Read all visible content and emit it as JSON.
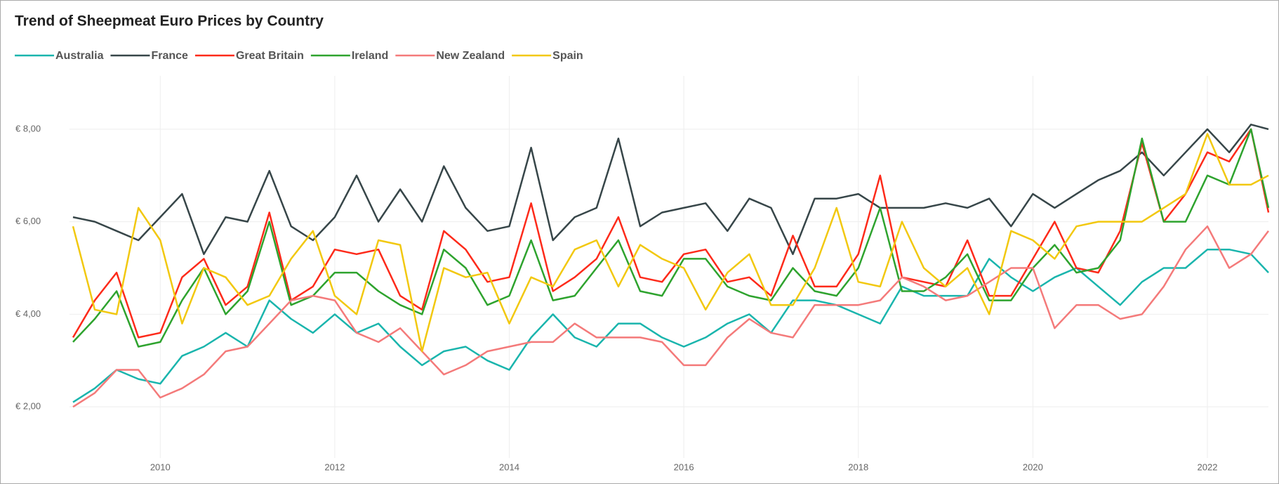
{
  "chart_data": {
    "type": "line",
    "title": "Trend of Sheepmeat Euro Prices by Country",
    "x": [
      2009,
      2009.25,
      2009.5,
      2009.75,
      2010,
      2010.25,
      2010.5,
      2010.75,
      2011,
      2011.25,
      2011.5,
      2011.75,
      2012,
      2012.25,
      2012.5,
      2012.75,
      2013,
      2013.25,
      2013.5,
      2013.75,
      2014,
      2014.25,
      2014.5,
      2014.75,
      2015,
      2015.25,
      2015.5,
      2015.75,
      2016,
      2016.25,
      2016.5,
      2016.75,
      2017,
      2017.25,
      2017.5,
      2017.75,
      2018,
      2018.25,
      2018.5,
      2018.75,
      2019,
      2019.25,
      2019.5,
      2019.75,
      2020,
      2020.25,
      2020.5,
      2020.75,
      2021,
      2021.25,
      2021.5,
      2021.75,
      2022,
      2022.25,
      2022.5,
      2022.7
    ],
    "series": [
      {
        "name": "Australia",
        "color": "#1ab5ad",
        "values": [
          2.1,
          2.4,
          2.8,
          2.6,
          2.5,
          3.1,
          3.3,
          3.6,
          3.3,
          4.3,
          3.9,
          3.6,
          4.0,
          3.6,
          3.8,
          3.3,
          2.9,
          3.2,
          3.3,
          3.0,
          2.8,
          3.5,
          4.0,
          3.5,
          3.3,
          3.8,
          3.8,
          3.5,
          3.3,
          3.5,
          3.8,
          4.0,
          3.6,
          4.3,
          4.3,
          4.2,
          4.0,
          3.8,
          4.6,
          4.4,
          4.4,
          4.4,
          5.2,
          4.8,
          4.5,
          4.8,
          5.0,
          4.6,
          4.2,
          4.7,
          5.0,
          5.0,
          5.4,
          5.4,
          5.3,
          4.9
        ]
      },
      {
        "name": "France",
        "color": "#374649",
        "values": [
          6.1,
          6.0,
          5.8,
          5.6,
          6.1,
          6.6,
          5.3,
          6.1,
          6.0,
          7.1,
          5.9,
          5.6,
          6.1,
          7.0,
          6.0,
          6.7,
          6.0,
          7.2,
          6.3,
          5.8,
          5.9,
          7.6,
          5.6,
          6.1,
          6.3,
          7.8,
          5.9,
          6.2,
          6.3,
          6.4,
          5.8,
          6.5,
          6.3,
          5.3,
          6.5,
          6.5,
          6.6,
          6.3,
          6.3,
          6.3,
          6.4,
          6.3,
          6.5,
          5.9,
          6.6,
          6.3,
          6.6,
          6.9,
          7.1,
          7.5,
          7.0,
          7.5,
          8.0,
          7.5,
          8.1,
          8.0
        ]
      },
      {
        "name": "Great Britain",
        "color": "#fd2a1a",
        "values": [
          3.5,
          4.3,
          4.9,
          3.5,
          3.6,
          4.8,
          5.2,
          4.2,
          4.6,
          6.2,
          4.3,
          4.6,
          5.4,
          5.3,
          5.4,
          4.4,
          4.1,
          5.8,
          5.4,
          4.7,
          4.8,
          6.4,
          4.5,
          4.8,
          5.2,
          6.1,
          4.8,
          4.7,
          5.3,
          5.4,
          4.7,
          4.8,
          4.4,
          5.7,
          4.6,
          4.6,
          5.3,
          7.0,
          4.8,
          4.7,
          4.6,
          5.6,
          4.4,
          4.4,
          5.2,
          6.0,
          5.0,
          4.9,
          5.8,
          7.7,
          6.0,
          6.6,
          7.5,
          7.3,
          8.0,
          6.2
        ]
      },
      {
        "name": "Ireland",
        "color": "#2ea32e",
        "values": [
          3.4,
          3.9,
          4.5,
          3.3,
          3.4,
          4.3,
          5.0,
          4.0,
          4.5,
          6.0,
          4.2,
          4.4,
          4.9,
          4.9,
          4.5,
          4.2,
          4.0,
          5.4,
          5.0,
          4.2,
          4.4,
          5.6,
          4.3,
          4.4,
          5.0,
          5.6,
          4.5,
          4.4,
          5.2,
          5.2,
          4.6,
          4.4,
          4.3,
          5.0,
          4.5,
          4.4,
          5.0,
          6.3,
          4.5,
          4.5,
          4.8,
          5.3,
          4.3,
          4.3,
          5.0,
          5.5,
          4.9,
          5.0,
          5.6,
          7.8,
          6.0,
          6.0,
          7.0,
          6.8,
          8.0,
          6.3
        ]
      },
      {
        "name": "New Zealand",
        "color": "#f47a7a",
        "values": [
          2.0,
          2.3,
          2.8,
          2.8,
          2.2,
          2.4,
          2.7,
          3.2,
          3.3,
          3.8,
          4.3,
          4.4,
          4.3,
          3.6,
          3.4,
          3.7,
          3.2,
          2.7,
          2.9,
          3.2,
          3.3,
          3.4,
          3.4,
          3.8,
          3.5,
          3.5,
          3.5,
          3.4,
          2.9,
          2.9,
          3.5,
          3.9,
          3.6,
          3.5,
          4.2,
          4.2,
          4.2,
          4.3,
          4.8,
          4.6,
          4.3,
          4.4,
          4.7,
          5.0,
          5.0,
          3.7,
          4.2,
          4.2,
          3.9,
          4.0,
          4.6,
          5.4,
          5.9,
          5.0,
          5.3,
          5.8
        ]
      },
      {
        "name": "Spain",
        "color": "#f2c80f",
        "values": [
          5.9,
          4.1,
          4.0,
          6.3,
          5.6,
          3.8,
          5.0,
          4.8,
          4.2,
          4.4,
          5.2,
          5.8,
          4.4,
          4.0,
          5.6,
          5.5,
          3.2,
          5.0,
          4.8,
          4.9,
          3.8,
          4.8,
          4.6,
          5.4,
          5.6,
          4.6,
          5.5,
          5.2,
          5.0,
          4.1,
          4.9,
          5.3,
          4.2,
          4.2,
          5.0,
          6.3,
          4.7,
          4.6,
          6.0,
          5.0,
          4.6,
          5.0,
          4.0,
          5.8,
          5.6,
          5.2,
          5.9,
          6.0,
          6.0,
          6.0,
          6.3,
          6.6,
          7.9,
          6.8,
          6.8,
          7.0
        ]
      }
    ],
    "xlim": [
      2008.96,
      2022.7
    ],
    "xticks": [
      2010,
      2012,
      2014,
      2016,
      2018,
      2020,
      2022
    ],
    "ylim": [
      0.5,
      9
    ],
    "yticks": [
      {
        "value": 2,
        "label": "€ 2,00"
      },
      {
        "value": 4,
        "label": "€ 4,00"
      },
      {
        "value": 6,
        "label": "€ 6,00"
      },
      {
        "value": 8,
        "label": "€ 8,00"
      }
    ],
    "grid": true
  }
}
